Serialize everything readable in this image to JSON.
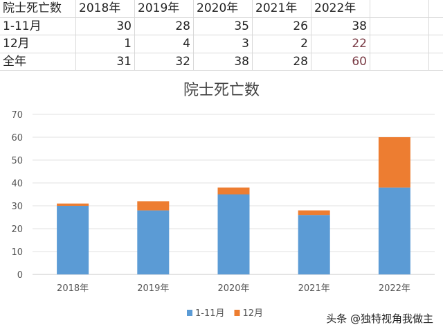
{
  "table": {
    "header": [
      "院士死亡数",
      "2018年",
      "2019年",
      "2020年",
      "2021年",
      "2022年"
    ],
    "rows": [
      {
        "label": "1-11月",
        "values": [
          "30",
          "28",
          "35",
          "26",
          "38"
        ]
      },
      {
        "label": "12月",
        "values": [
          "1",
          "4",
          "3",
          "2",
          "22"
        ]
      },
      {
        "label": "全年",
        "values": [
          "31",
          "32",
          "38",
          "28",
          "60"
        ]
      }
    ]
  },
  "watermark": "头条 @独特视角我做主",
  "chart_data": {
    "type": "bar",
    "stacked": true,
    "title": "院士死亡数",
    "categories": [
      "2018年",
      "2019年",
      "2020年",
      "2021年",
      "2022年"
    ],
    "series": [
      {
        "name": "1-11月",
        "values": [
          30,
          28,
          35,
          26,
          38
        ],
        "color": "#5b9bd5"
      },
      {
        "name": "12月",
        "values": [
          1,
          4,
          3,
          2,
          22
        ],
        "color": "#ed7d31"
      }
    ],
    "ylim": [
      0,
      70
    ],
    "yticks": [
      0,
      10,
      20,
      30,
      40,
      50,
      60,
      70
    ],
    "grid": true,
    "legend": "bottom"
  }
}
